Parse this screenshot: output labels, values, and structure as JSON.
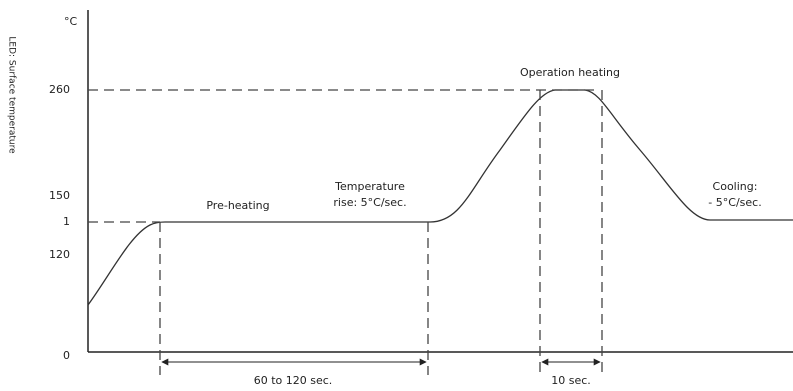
{
  "axis": {
    "title": "LED: Surface temperature",
    "unit": "°C",
    "ticks": [
      "260",
      "150",
      "1",
      "120",
      "0"
    ]
  },
  "annotations": {
    "preheat": "Pre-heating",
    "rise": [
      "Temperature",
      "rise: 5°C/sec."
    ],
    "operation": "Operation heating",
    "cooling": [
      "Cooling:",
      "- 5°C/sec."
    ]
  },
  "durations": {
    "preheat": "60 to 120 sec.",
    "operation": "10 sec."
  }
}
